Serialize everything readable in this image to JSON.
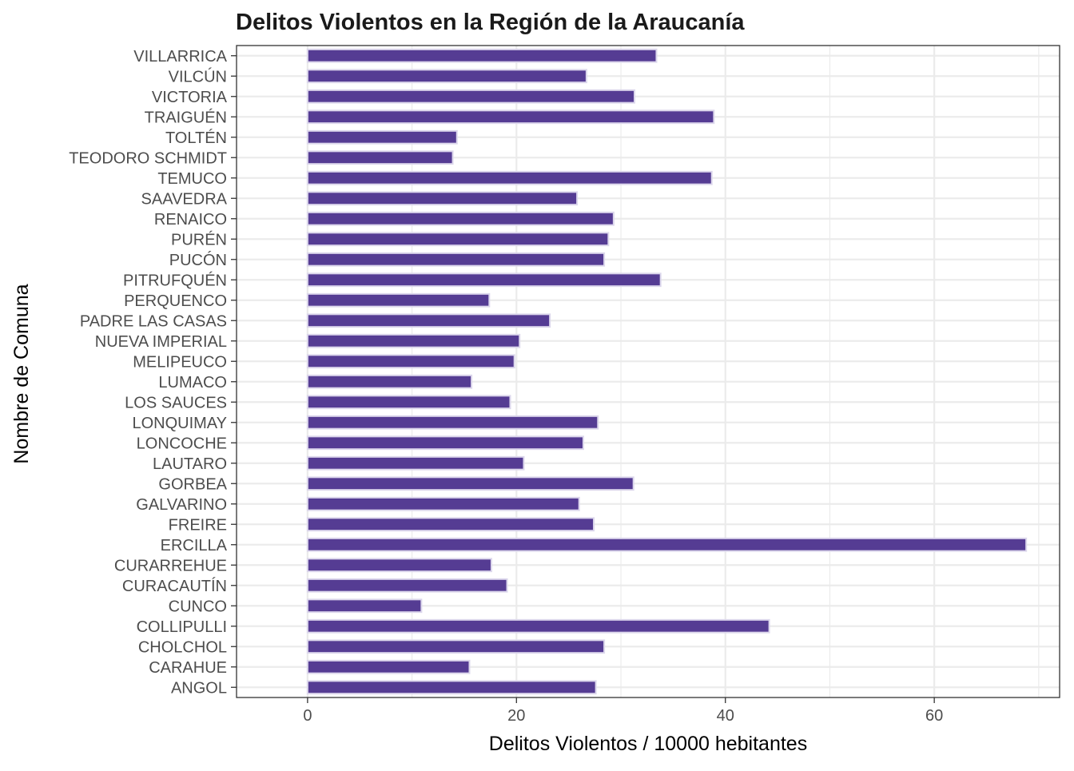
{
  "chart_data": {
    "type": "bar",
    "orientation": "horizontal",
    "title": "Delitos Violentos en la Región de la Araucanía",
    "xlabel": "Delitos Violentos / 10000 hebitantes",
    "ylabel": "Nombre de Comuna",
    "xlim": [
      -6.8,
      72
    ],
    "x_ticks": [
      0,
      20,
      40,
      60
    ],
    "grid": true,
    "bar_color": "#553C93",
    "bar_outline_color": "#DCD7EC",
    "categories": [
      "ANGOL",
      "CARAHUE",
      "CHOLCHOL",
      "COLLIPULLI",
      "CUNCO",
      "CURACAUTÍN",
      "CURARREHUE",
      "ERCILLA",
      "FREIRE",
      "GALVARINO",
      "GORBEA",
      "LAUTARO",
      "LONCOCHE",
      "LONQUIMAY",
      "LOS SAUCES",
      "LUMACO",
      "MELIPEUCO",
      "NUEVA IMPERIAL",
      "PADRE LAS CASAS",
      "PERQUENCO",
      "PITRUFQUÉN",
      "PUCÓN",
      "PURÉN",
      "RENAICO",
      "SAAVEDRA",
      "TEMUCO",
      "TEODORO SCHMIDT",
      "TOLTÉN",
      "TRAIGUÉN",
      "VICTORIA",
      "VILCÚN",
      "VILLARRICA"
    ],
    "values": [
      27.6,
      15.5,
      28.4,
      44.2,
      10.9,
      19.1,
      17.6,
      68.8,
      27.4,
      26.0,
      31.2,
      20.7,
      26.4,
      27.8,
      19.4,
      15.7,
      19.8,
      20.3,
      23.2,
      17.4,
      33.8,
      28.4,
      28.8,
      29.3,
      25.8,
      38.7,
      13.9,
      14.3,
      38.9,
      31.3,
      26.7,
      33.4
    ]
  }
}
